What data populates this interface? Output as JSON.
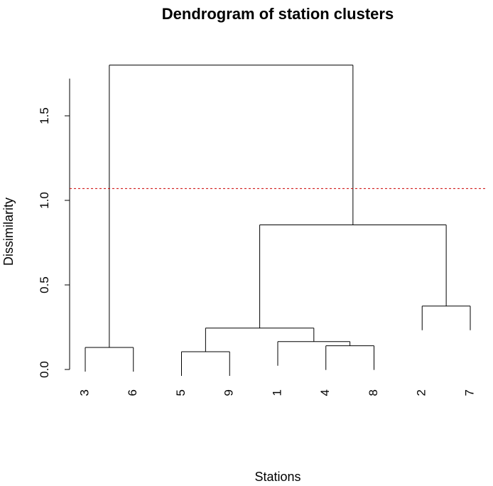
{
  "chart_data": {
    "type": "dendrogram",
    "title": "Dendrogram of station clusters",
    "xlabel": "Stations",
    "ylabel": "Dissimilarity",
    "ylim": [
      0,
      1.8
    ],
    "yticks": [
      0.0,
      0.5,
      1.0,
      1.5
    ],
    "ytick_labels": [
      "0.0",
      "0.5",
      "1.0",
      "1.5"
    ],
    "leaf_order": [
      "3",
      "6",
      "5",
      "9",
      "1",
      "4",
      "8",
      "2",
      "7"
    ],
    "merges": [
      {
        "left": "4",
        "right": "8",
        "height": 0.14
      },
      {
        "left": "5",
        "right": "9",
        "height": 0.105
      },
      {
        "left": "3",
        "right": "6",
        "height": 0.13
      },
      {
        "left": "1",
        "right": "[4,8]",
        "height": 0.165
      },
      {
        "left": "[5,9]",
        "right": "[1,4,8]",
        "height": 0.245
      },
      {
        "left": "2",
        "right": "7",
        "height": 0.375
      },
      {
        "left": "[5,9,1,4,8]",
        "right": "[2,7]",
        "height": 0.855
      },
      {
        "left": "[3,6]",
        "right": "[5,9,1,4,8,2,7]",
        "height": 1.8
      }
    ],
    "cut_line": {
      "height": 1.07,
      "color": "#cc0000",
      "style": "dashed"
    },
    "grid": false
  }
}
